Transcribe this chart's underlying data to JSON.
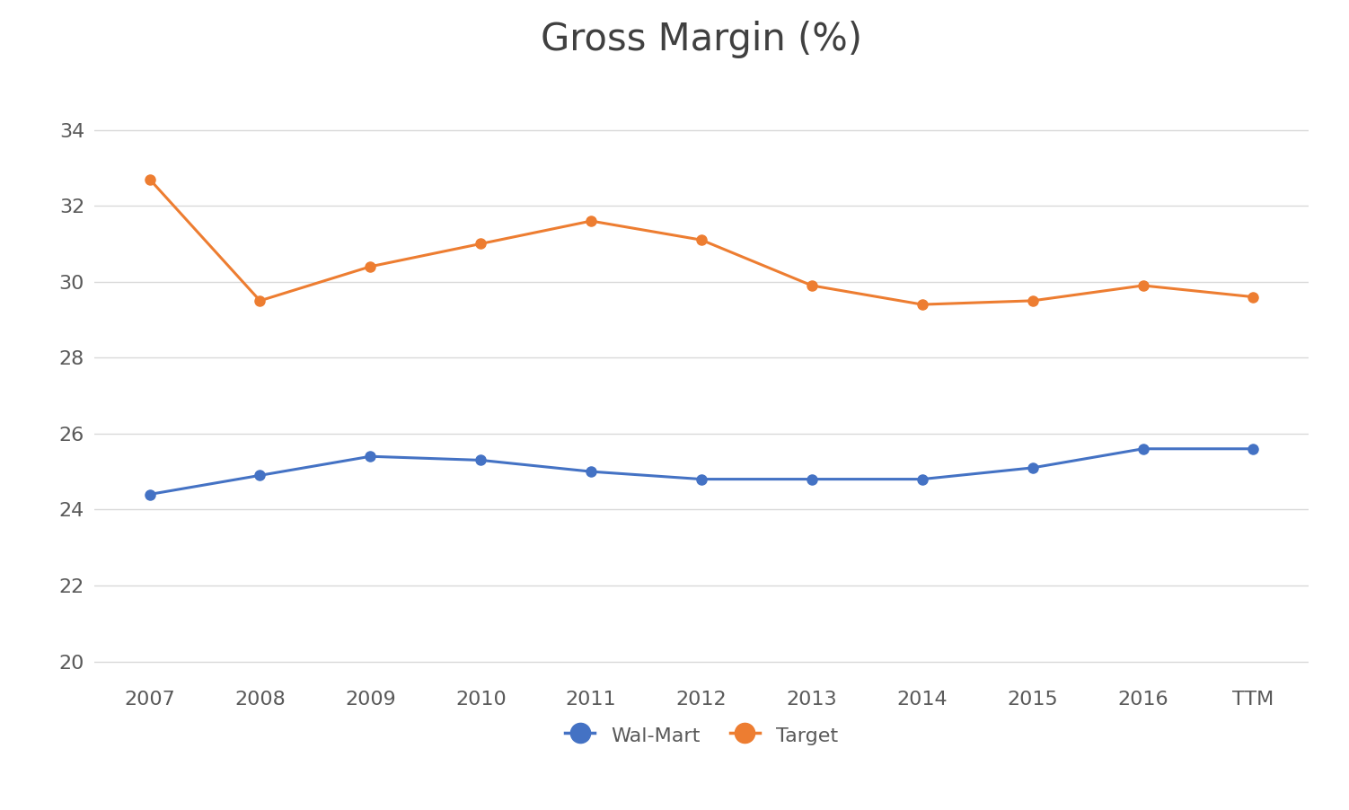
{
  "title": "Gross Margin (%)",
  "x_labels": [
    "2007",
    "2008",
    "2009",
    "2010",
    "2011",
    "2012",
    "2013",
    "2014",
    "2015",
    "2016",
    "TTM"
  ],
  "walmart": [
    24.4,
    24.9,
    25.4,
    25.3,
    25.0,
    24.8,
    24.8,
    24.8,
    25.1,
    25.6,
    25.6
  ],
  "target": [
    32.7,
    29.5,
    30.4,
    31.0,
    31.6,
    31.1,
    29.9,
    29.4,
    29.5,
    29.9,
    29.6
  ],
  "walmart_color": "#4472C4",
  "target_color": "#ED7D31",
  "ylim_min": 19.5,
  "ylim_max": 35.5,
  "yticks": [
    20,
    22,
    24,
    26,
    28,
    30,
    32,
    34
  ],
  "background_color": "#FFFFFF",
  "grid_color": "#D9D9D9",
  "title_fontsize": 30,
  "tick_fontsize": 16,
  "legend_fontsize": 16,
  "line_width": 2.2,
  "marker_size": 8,
  "marker_style": "o"
}
